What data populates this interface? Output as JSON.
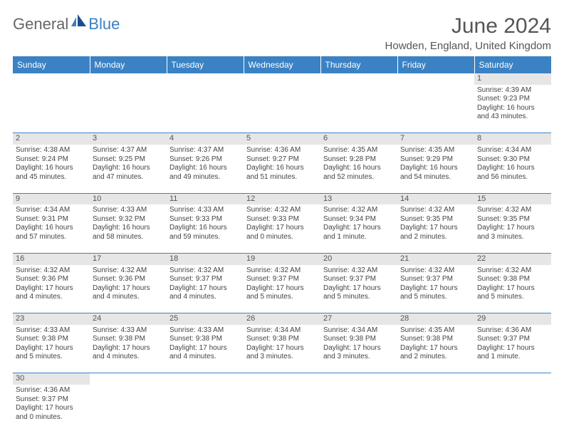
{
  "logo": {
    "text1": "General",
    "text2": "Blue"
  },
  "title": "June 2024",
  "location": "Howden, England, United Kingdom",
  "colors": {
    "header_bg": "#3b82c4",
    "header_text": "#ffffff",
    "daynum_bg": "#e6e6e6",
    "cell_border": "#3b82c4",
    "logo_gray": "#666666",
    "logo_blue": "#3b7fc4"
  },
  "weekdays": [
    "Sunday",
    "Monday",
    "Tuesday",
    "Wednesday",
    "Thursday",
    "Friday",
    "Saturday"
  ],
  "weeks": [
    {
      "nums": [
        "",
        "",
        "",
        "",
        "",
        "",
        "1"
      ],
      "cells": [
        null,
        null,
        null,
        null,
        null,
        null,
        {
          "sunrise": "Sunrise: 4:39 AM",
          "sunset": "Sunset: 9:23 PM",
          "daylight": "Daylight: 16 hours and 43 minutes."
        }
      ]
    },
    {
      "nums": [
        "2",
        "3",
        "4",
        "5",
        "6",
        "7",
        "8"
      ],
      "cells": [
        {
          "sunrise": "Sunrise: 4:38 AM",
          "sunset": "Sunset: 9:24 PM",
          "daylight": "Daylight: 16 hours and 45 minutes."
        },
        {
          "sunrise": "Sunrise: 4:37 AM",
          "sunset": "Sunset: 9:25 PM",
          "daylight": "Daylight: 16 hours and 47 minutes."
        },
        {
          "sunrise": "Sunrise: 4:37 AM",
          "sunset": "Sunset: 9:26 PM",
          "daylight": "Daylight: 16 hours and 49 minutes."
        },
        {
          "sunrise": "Sunrise: 4:36 AM",
          "sunset": "Sunset: 9:27 PM",
          "daylight": "Daylight: 16 hours and 51 minutes."
        },
        {
          "sunrise": "Sunrise: 4:35 AM",
          "sunset": "Sunset: 9:28 PM",
          "daylight": "Daylight: 16 hours and 52 minutes."
        },
        {
          "sunrise": "Sunrise: 4:35 AM",
          "sunset": "Sunset: 9:29 PM",
          "daylight": "Daylight: 16 hours and 54 minutes."
        },
        {
          "sunrise": "Sunrise: 4:34 AM",
          "sunset": "Sunset: 9:30 PM",
          "daylight": "Daylight: 16 hours and 56 minutes."
        }
      ]
    },
    {
      "nums": [
        "9",
        "10",
        "11",
        "12",
        "13",
        "14",
        "15"
      ],
      "cells": [
        {
          "sunrise": "Sunrise: 4:34 AM",
          "sunset": "Sunset: 9:31 PM",
          "daylight": "Daylight: 16 hours and 57 minutes."
        },
        {
          "sunrise": "Sunrise: 4:33 AM",
          "sunset": "Sunset: 9:32 PM",
          "daylight": "Daylight: 16 hours and 58 minutes."
        },
        {
          "sunrise": "Sunrise: 4:33 AM",
          "sunset": "Sunset: 9:33 PM",
          "daylight": "Daylight: 16 hours and 59 minutes."
        },
        {
          "sunrise": "Sunrise: 4:32 AM",
          "sunset": "Sunset: 9:33 PM",
          "daylight": "Daylight: 17 hours and 0 minutes."
        },
        {
          "sunrise": "Sunrise: 4:32 AM",
          "sunset": "Sunset: 9:34 PM",
          "daylight": "Daylight: 17 hours and 1 minute."
        },
        {
          "sunrise": "Sunrise: 4:32 AM",
          "sunset": "Sunset: 9:35 PM",
          "daylight": "Daylight: 17 hours and 2 minutes."
        },
        {
          "sunrise": "Sunrise: 4:32 AM",
          "sunset": "Sunset: 9:35 PM",
          "daylight": "Daylight: 17 hours and 3 minutes."
        }
      ]
    },
    {
      "nums": [
        "16",
        "17",
        "18",
        "19",
        "20",
        "21",
        "22"
      ],
      "cells": [
        {
          "sunrise": "Sunrise: 4:32 AM",
          "sunset": "Sunset: 9:36 PM",
          "daylight": "Daylight: 17 hours and 4 minutes."
        },
        {
          "sunrise": "Sunrise: 4:32 AM",
          "sunset": "Sunset: 9:36 PM",
          "daylight": "Daylight: 17 hours and 4 minutes."
        },
        {
          "sunrise": "Sunrise: 4:32 AM",
          "sunset": "Sunset: 9:37 PM",
          "daylight": "Daylight: 17 hours and 4 minutes."
        },
        {
          "sunrise": "Sunrise: 4:32 AM",
          "sunset": "Sunset: 9:37 PM",
          "daylight": "Daylight: 17 hours and 5 minutes."
        },
        {
          "sunrise": "Sunrise: 4:32 AM",
          "sunset": "Sunset: 9:37 PM",
          "daylight": "Daylight: 17 hours and 5 minutes."
        },
        {
          "sunrise": "Sunrise: 4:32 AM",
          "sunset": "Sunset: 9:37 PM",
          "daylight": "Daylight: 17 hours and 5 minutes."
        },
        {
          "sunrise": "Sunrise: 4:32 AM",
          "sunset": "Sunset: 9:38 PM",
          "daylight": "Daylight: 17 hours and 5 minutes."
        }
      ]
    },
    {
      "nums": [
        "23",
        "24",
        "25",
        "26",
        "27",
        "28",
        "29"
      ],
      "cells": [
        {
          "sunrise": "Sunrise: 4:33 AM",
          "sunset": "Sunset: 9:38 PM",
          "daylight": "Daylight: 17 hours and 5 minutes."
        },
        {
          "sunrise": "Sunrise: 4:33 AM",
          "sunset": "Sunset: 9:38 PM",
          "daylight": "Daylight: 17 hours and 4 minutes."
        },
        {
          "sunrise": "Sunrise: 4:33 AM",
          "sunset": "Sunset: 9:38 PM",
          "daylight": "Daylight: 17 hours and 4 minutes."
        },
        {
          "sunrise": "Sunrise: 4:34 AM",
          "sunset": "Sunset: 9:38 PM",
          "daylight": "Daylight: 17 hours and 3 minutes."
        },
        {
          "sunrise": "Sunrise: 4:34 AM",
          "sunset": "Sunset: 9:38 PM",
          "daylight": "Daylight: 17 hours and 3 minutes."
        },
        {
          "sunrise": "Sunrise: 4:35 AM",
          "sunset": "Sunset: 9:38 PM",
          "daylight": "Daylight: 17 hours and 2 minutes."
        },
        {
          "sunrise": "Sunrise: 4:36 AM",
          "sunset": "Sunset: 9:37 PM",
          "daylight": "Daylight: 17 hours and 1 minute."
        }
      ]
    },
    {
      "nums": [
        "30",
        "",
        "",
        "",
        "",
        "",
        ""
      ],
      "cells": [
        {
          "sunrise": "Sunrise: 4:36 AM",
          "sunset": "Sunset: 9:37 PM",
          "daylight": "Daylight: 17 hours and 0 minutes."
        },
        null,
        null,
        null,
        null,
        null,
        null
      ]
    }
  ]
}
